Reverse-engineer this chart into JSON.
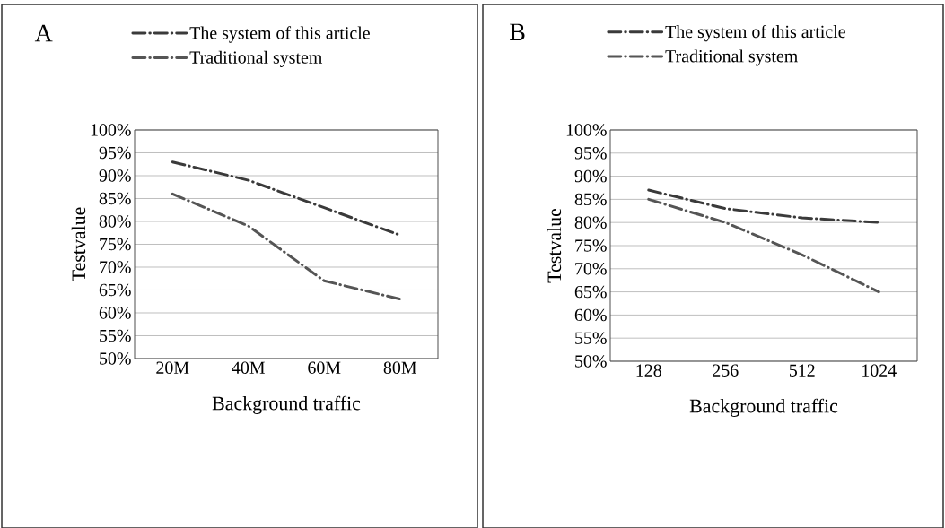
{
  "chart_data": [
    {
      "type": "line",
      "title": "A",
      "xlabel": "Background traffic",
      "ylabel": "Testvalue",
      "categories": [
        "20M",
        "40M",
        "60M",
        "80M"
      ],
      "series": [
        {
          "name": "The system of this article",
          "color": "#3a3a3a",
          "values": [
            93,
            89,
            83,
            77
          ]
        },
        {
          "name": "Traditional system",
          "color": "#555555",
          "values": [
            86,
            79,
            67,
            63
          ]
        }
      ],
      "ylim": [
        50,
        100
      ],
      "yticks": [
        {
          "value": 50,
          "label": "50%"
        },
        {
          "value": 55,
          "label": "55%"
        },
        {
          "value": 60,
          "label": "60%"
        },
        {
          "value": 65,
          "label": "65%"
        },
        {
          "value": 70,
          "label": "70%"
        },
        {
          "value": 75,
          "label": "75%"
        },
        {
          "value": 80,
          "label": "80%"
        },
        {
          "value": 85,
          "label": "85%"
        },
        {
          "value": 90,
          "label": "90%"
        },
        {
          "value": 95,
          "label": "95%"
        },
        {
          "value": 100,
          "label": "100%"
        }
      ],
      "grid": "y",
      "legend": "top",
      "line_style": "dashed"
    },
    {
      "type": "line",
      "title": "B",
      "xlabel": "Background traffic",
      "ylabel": "Testvalue",
      "categories": [
        "128",
        "256",
        "512",
        "1024"
      ],
      "series": [
        {
          "name": "The system of this article",
          "color": "#3a3a3a",
          "values": [
            87,
            83,
            81,
            80
          ]
        },
        {
          "name": "Traditional system",
          "color": "#555555",
          "values": [
            85,
            80,
            73,
            65
          ]
        }
      ],
      "ylim": [
        50,
        100
      ],
      "yticks": [
        {
          "value": 50,
          "label": "50%"
        },
        {
          "value": 55,
          "label": "55%"
        },
        {
          "value": 60,
          "label": "60%"
        },
        {
          "value": 65,
          "label": "65%"
        },
        {
          "value": 70,
          "label": "70%"
        },
        {
          "value": 75,
          "label": "75%"
        },
        {
          "value": 80,
          "label": "80%"
        },
        {
          "value": 85,
          "label": "85%"
        },
        {
          "value": 90,
          "label": "90%"
        },
        {
          "value": 95,
          "label": "95%"
        },
        {
          "value": 100,
          "label": "100%"
        }
      ],
      "grid": "y",
      "legend": "top",
      "line_style": "dashed"
    }
  ]
}
